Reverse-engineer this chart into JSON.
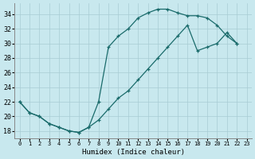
{
  "xlabel": "Humidex (Indice chaleur)",
  "bg_color": "#c8e8ee",
  "grid_color": "#a8ccd4",
  "line_color": "#1a6b6b",
  "xlim": [
    -0.5,
    23.5
  ],
  "ylim": [
    17.0,
    35.5
  ],
  "xticks": [
    0,
    1,
    2,
    3,
    4,
    5,
    6,
    7,
    8,
    9,
    10,
    11,
    12,
    13,
    14,
    15,
    16,
    17,
    18,
    19,
    20,
    21,
    22,
    23
  ],
  "yticks": [
    18,
    20,
    22,
    24,
    26,
    28,
    30,
    32,
    34
  ],
  "curve1_x": [
    0,
    1,
    2,
    3,
    4,
    5,
    6,
    7,
    8,
    9,
    10,
    11,
    12,
    13,
    14,
    15,
    16,
    17,
    18,
    19,
    20,
    21,
    22
  ],
  "curve1_y": [
    22,
    20.5,
    20,
    19,
    18.5,
    18,
    17.8,
    18.5,
    22,
    29.5,
    31,
    32,
    33.5,
    34.2,
    34.7,
    34.7,
    34.2,
    33.8,
    33.8,
    33.5,
    32.5,
    31,
    30
  ],
  "curve2_x": [
    0,
    1,
    2,
    3,
    4,
    5,
    6,
    7,
    8,
    9,
    10,
    11,
    12,
    13,
    14,
    15,
    16,
    17,
    18,
    19,
    20,
    21,
    22
  ],
  "curve2_y": [
    22,
    20.5,
    20,
    19,
    18.5,
    18,
    17.8,
    18.5,
    19.5,
    21,
    22.5,
    23.5,
    25,
    26.5,
    28,
    29.5,
    31,
    32.5,
    29,
    29.5,
    30,
    31.5,
    30
  ]
}
